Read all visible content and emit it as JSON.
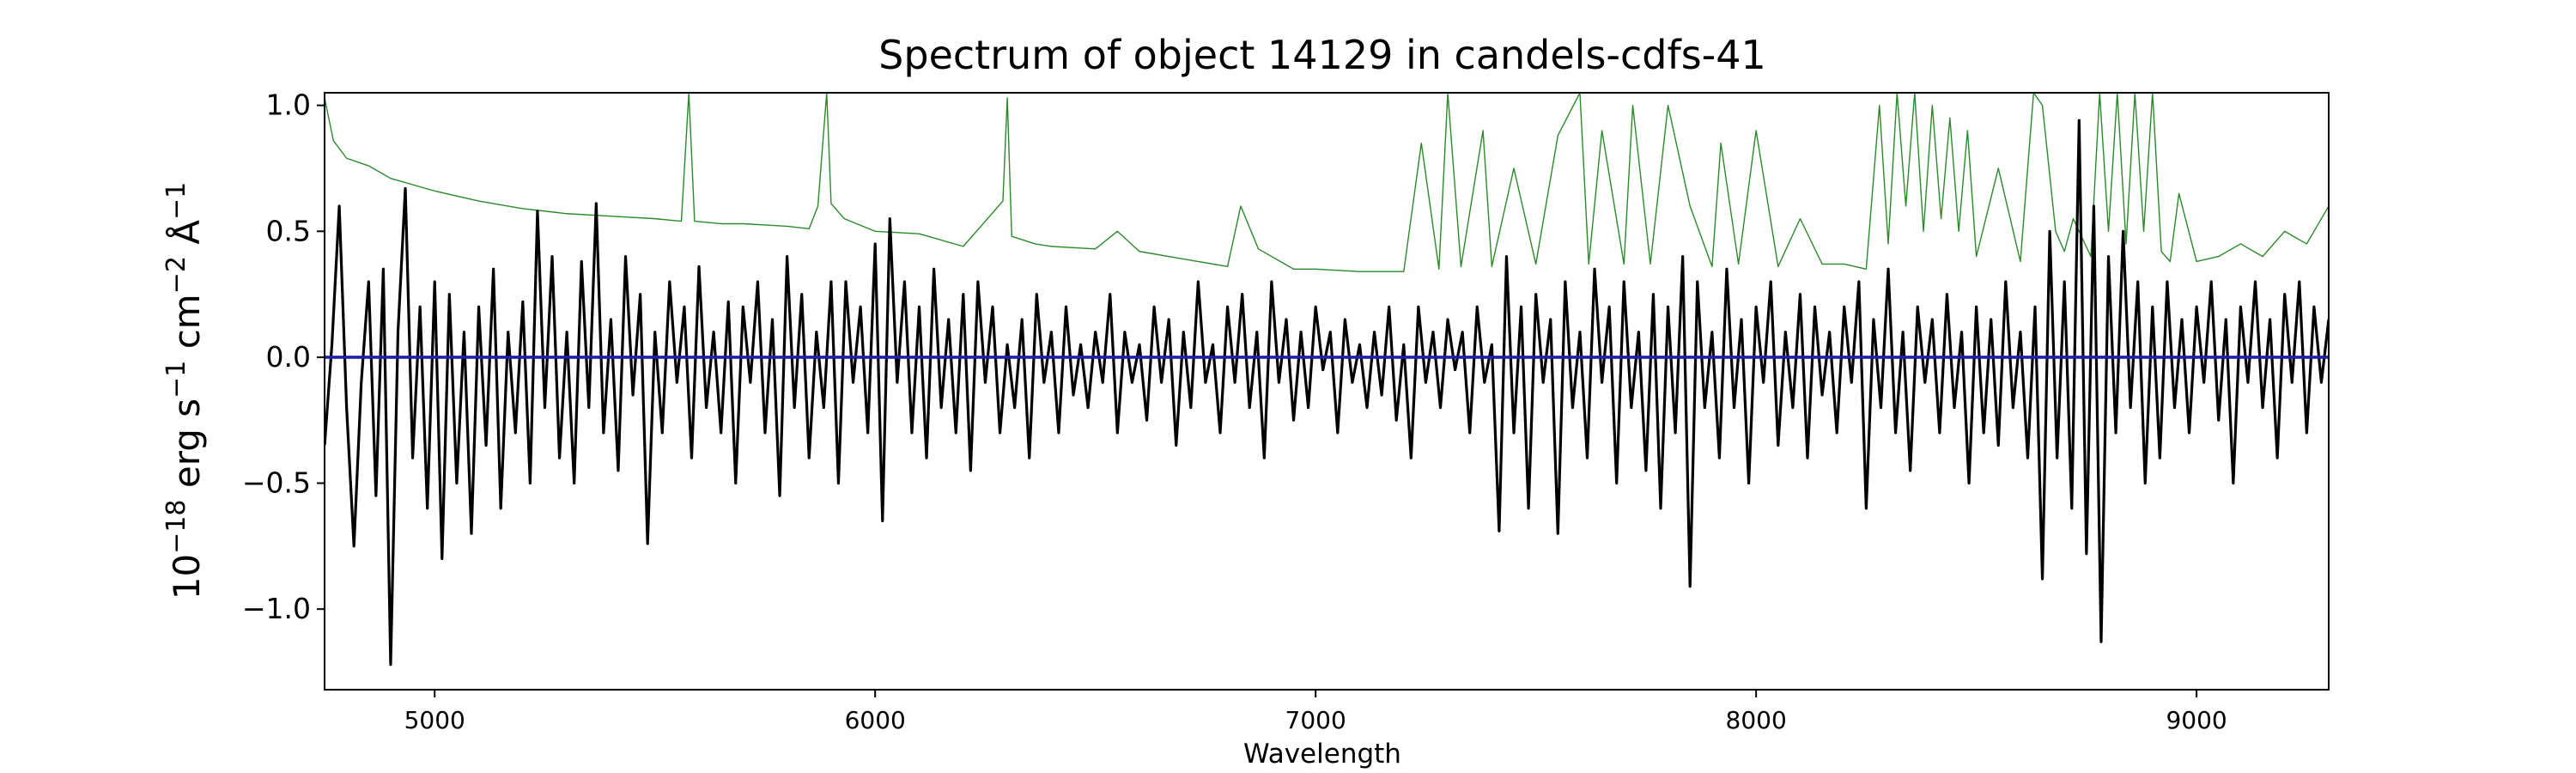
{
  "chart_data": {
    "type": "line",
    "title": "Spectrum of object 14129 in candels-cdfs-41",
    "xlabel": "Wavelength",
    "ylabel_parts": [
      "10",
      "−18",
      " erg s",
      "−1",
      " cm",
      "−2",
      " Å",
      "−1"
    ],
    "xlim": [
      4750,
      9300
    ],
    "ylim": [
      -1.32,
      1.05
    ],
    "x_ticks": [
      5000,
      6000,
      7000,
      8000,
      9000
    ],
    "x_tick_labels": [
      "5000",
      "6000",
      "7000",
      "8000",
      "9000"
    ],
    "y_ticks": [
      1.0,
      0.5,
      0.0,
      -0.5,
      -1.0
    ],
    "y_tick_labels": [
      "1.0",
      "0.5",
      "0.0",
      "−0.5",
      "−1.0"
    ],
    "grid": false,
    "series": [
      {
        "role": "error",
        "color": "#2a8a2a",
        "x": [
          4750,
          4770,
          4800,
          4850,
          4900,
          5000,
          5100,
          5200,
          5300,
          5400,
          5500,
          5560,
          5577,
          5590,
          5650,
          5700,
          5800,
          5850,
          5870,
          5890,
          5900,
          5930,
          6000,
          6100,
          6200,
          6290,
          6300,
          6310,
          6363,
          6400,
          6500,
          6550,
          6600,
          6700,
          6800,
          6830,
          6870,
          6950,
          7000,
          7100,
          7200,
          7240,
          7280,
          7300,
          7330,
          7380,
          7400,
          7450,
          7500,
          7550,
          7600,
          7620,
          7650,
          7700,
          7720,
          7760,
          7800,
          7850,
          7900,
          7920,
          7960,
          8000,
          8050,
          8100,
          8150,
          8200,
          8250,
          8280,
          8300,
          8320,
          8340,
          8360,
          8380,
          8400,
          8420,
          8440,
          8460,
          8480,
          8500,
          8550,
          8600,
          8630,
          8650,
          8680,
          8700,
          8720,
          8760,
          8780,
          8800,
          8820,
          8840,
          8860,
          8880,
          8900,
          8920,
          8940,
          8960,
          9000,
          9050,
          9100,
          9150,
          9200,
          9250,
          9300
        ],
        "values": [
          1.03,
          0.86,
          0.79,
          0.76,
          0.71,
          0.66,
          0.62,
          0.59,
          0.57,
          0.56,
          0.55,
          0.54,
          1.05,
          0.54,
          0.53,
          0.53,
          0.52,
          0.51,
          0.6,
          1.05,
          0.61,
          0.55,
          0.5,
          0.49,
          0.44,
          0.62,
          1.03,
          0.48,
          0.45,
          0.44,
          0.43,
          0.5,
          0.42,
          0.39,
          0.36,
          0.6,
          0.43,
          0.35,
          0.35,
          0.34,
          0.34,
          0.85,
          0.35,
          1.05,
          0.36,
          0.9,
          0.36,
          0.75,
          0.37,
          0.88,
          1.05,
          0.37,
          0.9,
          0.37,
          1.0,
          0.37,
          1.0,
          0.6,
          0.36,
          0.85,
          0.37,
          0.9,
          0.36,
          0.55,
          0.37,
          0.37,
          0.35,
          1.0,
          0.45,
          1.05,
          0.6,
          1.05,
          0.5,
          1.0,
          0.55,
          0.95,
          0.5,
          0.9,
          0.4,
          0.75,
          0.38,
          1.05,
          1.0,
          0.5,
          0.42,
          0.55,
          0.4,
          1.05,
          0.5,
          1.05,
          0.45,
          1.05,
          0.5,
          1.05,
          0.42,
          0.38,
          0.65,
          0.38,
          0.4,
          0.45,
          0.4,
          0.5,
          0.45,
          0.6
        ]
      },
      {
        "role": "flux",
        "color": "#000000",
        "x_start": 4750,
        "x_end": 9300,
        "values": [
          -0.35,
          0.05,
          0.6,
          -0.2,
          -0.75,
          -0.1,
          0.3,
          -0.55,
          0.35,
          -1.22,
          0.1,
          0.67,
          -0.4,
          0.2,
          -0.6,
          0.3,
          -0.8,
          0.25,
          -0.5,
          0.1,
          -0.7,
          0.2,
          -0.35,
          0.35,
          -0.6,
          0.1,
          -0.3,
          0.22,
          -0.5,
          0.58,
          -0.2,
          0.4,
          -0.4,
          0.1,
          -0.5,
          0.38,
          -0.2,
          0.61,
          -0.3,
          0.15,
          -0.45,
          0.4,
          -0.15,
          0.25,
          -0.74,
          0.1,
          -0.3,
          0.3,
          -0.1,
          0.2,
          -0.4,
          0.36,
          -0.2,
          0.1,
          -0.3,
          0.22,
          -0.5,
          0.2,
          -0.1,
          0.3,
          -0.3,
          0.15,
          -0.55,
          0.4,
          -0.2,
          0.25,
          -0.4,
          0.1,
          -0.2,
          0.3,
          -0.5,
          0.3,
          -0.1,
          0.2,
          -0.3,
          0.45,
          -0.65,
          0.55,
          -0.1,
          0.3,
          -0.3,
          0.2,
          -0.4,
          0.35,
          -0.2,
          0.15,
          -0.3,
          0.25,
          -0.45,
          0.3,
          -0.1,
          0.2,
          -0.3,
          0.05,
          -0.2,
          0.15,
          -0.4,
          0.25,
          -0.1,
          0.1,
          -0.3,
          0.2,
          -0.15,
          0.05,
          -0.2,
          0.1,
          -0.1,
          0.25,
          -0.3,
          0.1,
          -0.1,
          0.05,
          -0.25,
          0.2,
          -0.1,
          0.15,
          -0.35,
          0.1,
          -0.2,
          0.3,
          -0.1,
          0.05,
          -0.3,
          0.2,
          -0.1,
          0.25,
          -0.2,
          0.1,
          -0.4,
          0.3,
          -0.1,
          0.15,
          -0.25,
          0.1,
          -0.2,
          0.2,
          -0.05,
          0.1,
          -0.3,
          0.15,
          -0.1,
          0.05,
          -0.2,
          0.1,
          -0.15,
          0.2,
          -0.25,
          0.05,
          -0.4,
          0.2,
          -0.1,
          0.1,
          -0.2,
          0.15,
          -0.05,
          0.1,
          -0.3,
          0.2,
          -0.1,
          0.05,
          -0.69,
          0.4,
          -0.3,
          0.2,
          -0.6,
          0.25,
          -0.1,
          0.15,
          -0.7,
          0.3,
          -0.2,
          0.1,
          -0.4,
          0.35,
          -0.1,
          0.2,
          -0.5,
          0.3,
          -0.2,
          0.1,
          -0.45,
          0.25,
          -0.6,
          0.2,
          -0.3,
          0.4,
          -0.91,
          0.3,
          -0.2,
          0.1,
          -0.4,
          0.35,
          -0.2,
          0.15,
          -0.5,
          0.2,
          -0.1,
          0.3,
          -0.35,
          0.1,
          -0.2,
          0.25,
          -0.4,
          0.2,
          -0.15,
          0.1,
          -0.3,
          0.2,
          -0.1,
          0.3,
          -0.6,
          0.15,
          -0.2,
          0.35,
          -0.3,
          0.1,
          -0.45,
          0.2,
          -0.1,
          0.15,
          -0.3,
          0.25,
          -0.2,
          0.1,
          -0.5,
          0.2,
          -0.3,
          0.15,
          -0.35,
          0.3,
          -0.2,
          0.1,
          -0.4,
          0.2,
          -0.88,
          0.5,
          -0.4,
          0.3,
          -0.6,
          0.94,
          -0.78,
          0.6,
          -1.13,
          0.4,
          -0.3,
          0.5,
          -0.2,
          0.3,
          -0.5,
          0.2,
          -0.4,
          0.3,
          -0.2,
          0.15,
          -0.3,
          0.2,
          -0.1,
          0.3,
          -0.25,
          0.15,
          -0.5,
          0.2,
          -0.1,
          0.3,
          -0.2,
          0.15,
          -0.4,
          0.25,
          -0.1,
          0.3,
          -0.3,
          0.2,
          -0.1,
          0.15
        ]
      },
      {
        "role": "model",
        "color": "#1f1fa8",
        "x": [
          4750,
          9300
        ],
        "values": [
          0.0,
          0.0
        ]
      }
    ]
  }
}
